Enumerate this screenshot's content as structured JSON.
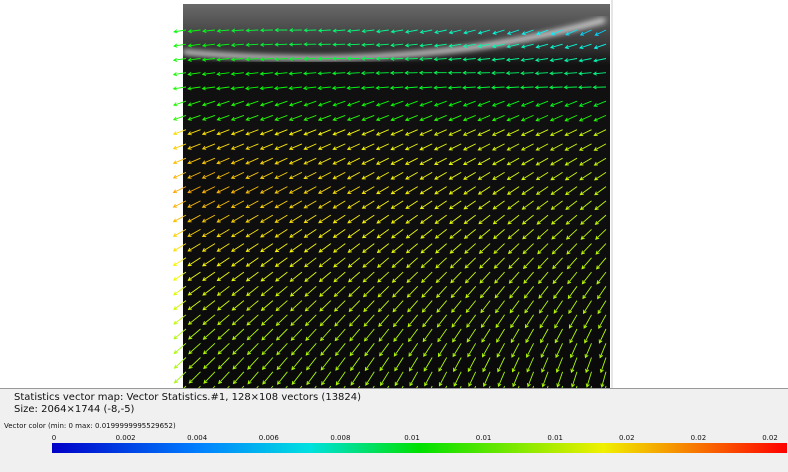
{
  "info": {
    "map_line": "Statistics vector map: Vector Statistics.#1, 128×108 vectors (13824)",
    "size_line": "Size: 2064×1744 (-8,-5)"
  },
  "colorbar": {
    "caption": "Vector color (min: 0 max: 0.0199999995529652)",
    "labels": [
      "0",
      "0.002",
      "0.004",
      "0.006",
      "0.008",
      "0.01",
      "0.01",
      "0.01",
      "0.02",
      "0.02",
      "0.02"
    ]
  }
}
